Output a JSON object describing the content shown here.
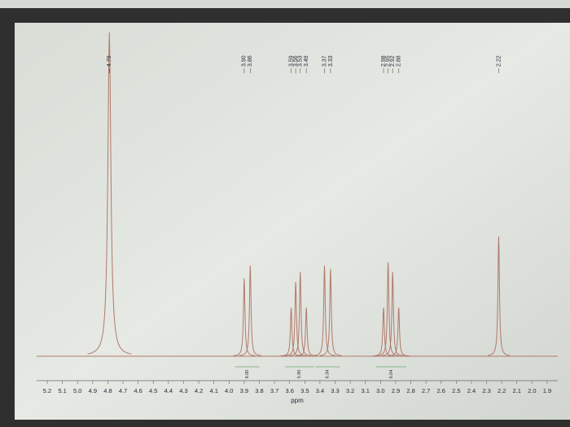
{
  "chart_data": {
    "type": "nmr",
    "x_label": "ppm",
    "xlim": [
      5.27,
      1.83
    ],
    "xticks": [
      5.2,
      5.1,
      {
        "value": 5,
        "label": "5.0"
      },
      4.9,
      4.8,
      4.7,
      4.6,
      4.5,
      4.4,
      4.3,
      4.2,
      4.1,
      {
        "value": 4,
        "label": "4.0"
      },
      3.9,
      3.8,
      3.7,
      3.6,
      3.5,
      3.4,
      3.3,
      3.2,
      3.1,
      {
        "value": 3,
        "label": "3.0"
      },
      2.9,
      2.8,
      2.7,
      2.6,
      2.5,
      2.4,
      2.3,
      2.2,
      2.1,
      {
        "value": 2,
        "label": "2.0"
      },
      1.9
    ],
    "ylim": [
      0,
      100
    ],
    "color": "#b07a6a",
    "peaks": {
      "x": [
        4.79,
        3.9,
        3.86,
        3.59,
        3.56,
        3.53,
        3.49,
        3.37,
        3.33,
        2.98,
        2.95,
        2.92,
        2.88,
        2.22
      ],
      "labels": [
        "4.79",
        "3.90",
        "3.86",
        "3.59",
        "3.56",
        "3.53",
        "3.49",
        "3.37",
        "3.33",
        "2.98",
        "2.95",
        "2.92",
        "2.88",
        "2.22"
      ],
      "values": [
        100,
        24,
        28,
        15,
        23,
        26,
        15,
        28,
        27,
        15,
        29,
        26,
        15,
        37
      ]
    },
    "integrals": {
      "labels": [
        "6.00",
        "5.90",
        "6.34",
        "6.04"
      ],
      "from": [
        3.96,
        3.63,
        3.43,
        3.03
      ],
      "to": [
        3.8,
        3.44,
        3.27,
        2.83
      ]
    }
  }
}
